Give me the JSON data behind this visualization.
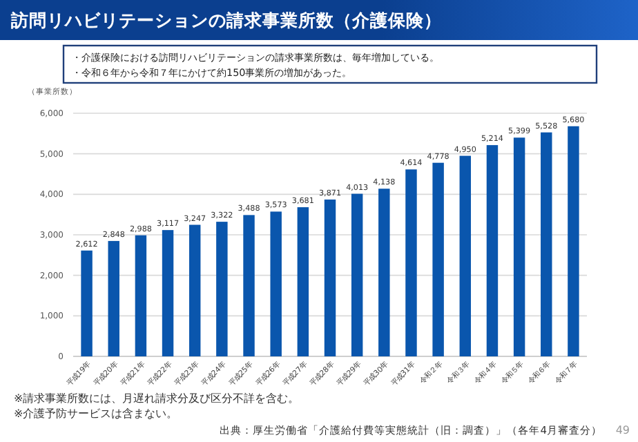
{
  "chart_data": {
    "type": "bar",
    "title": "訪問リハビリテーションの請求事業所数（介護保険）",
    "ylabel": "（事業所数）",
    "annotations": [
      "・介護保険における訪問リハビリテーションの請求事業所数は、毎年増加している。",
      "・令和６年から令和７年にかけて約150事業所の増加があった。",
      "※請求事業所数には、月遅れ請求分及び区分不詳を含む。",
      "※介護予防サービスは含まない。",
      "出典：厚生労働省「介護給付費等実態統計（旧：調査）」（各年4月審査分）",
      "49"
    ],
    "categories": [
      "平成19年",
      "平成20年",
      "平成21年",
      "平成22年",
      "平成23年",
      "平成24年",
      "平成25年",
      "平成26年",
      "平成27年",
      "平成28年",
      "平成29年",
      "平成30年",
      "平成31年",
      "令和２年",
      "令和３年",
      "令和４年",
      "令和５年",
      "令和６年",
      "令和７年"
    ],
    "values": [
      2612,
      2848,
      2988,
      3117,
      3247,
      3322,
      3488,
      3573,
      3681,
      3871,
      4013,
      4138,
      4614,
      4778,
      4950,
      5214,
      5399,
      5528,
      5680
    ],
    "value_labels": [
      "2,612",
      "2,848",
      "2,988",
      "3,117",
      "3,247",
      "3,322",
      "3,488",
      "3,573",
      "3,681",
      "3,871",
      "4,013",
      "4,138",
      "4,614",
      "4,778",
      "4,950",
      "5,214",
      "5,399",
      "5,528",
      "5,680"
    ],
    "color": "#0a56ad",
    "ylim": [
      0,
      6000
    ],
    "yticks": [
      {
        "value": 0,
        "label": "0"
      },
      {
        "value": 1000,
        "label": "1,000"
      },
      {
        "value": 2000,
        "label": "2,000"
      },
      {
        "value": 3000,
        "label": "3,000"
      },
      {
        "value": 4000,
        "label": "4,000"
      },
      {
        "value": 5000,
        "label": "5,000"
      },
      {
        "value": 6000,
        "label": "6,000"
      }
    ],
    "grid": "y"
  }
}
